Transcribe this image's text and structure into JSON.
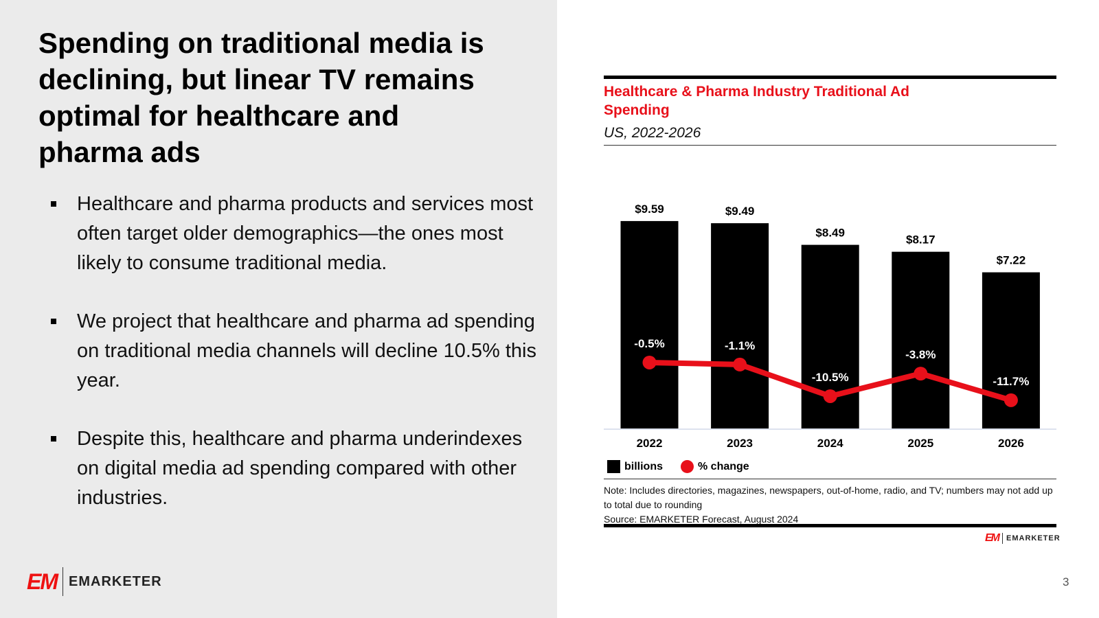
{
  "slide": {
    "title": "Spending on traditional media is declining, but linear TV remains optimal for healthcare and pharma ads",
    "bullets": [
      "Healthcare and pharma products and services most often target older demographics—the ones most likely to consume traditional media.",
      "We project that healthcare and pharma ad spending on traditional media channels will decline 10.5% this year.",
      "Despite this, healthcare and pharma underindexes on digital media ad spending compared with other industries."
    ],
    "logo_text": "EMARKETER",
    "logo_mark": "EM",
    "page_number": "3"
  },
  "chart_data": {
    "type": "bar",
    "title": "Healthcare & Pharma Industry Traditional Ad Spending",
    "subtitle": "US, 2022-2026",
    "categories": [
      "2022",
      "2023",
      "2024",
      "2025",
      "2026"
    ],
    "series": [
      {
        "name": "billions",
        "type": "bar",
        "values": [
          9.59,
          9.49,
          8.49,
          8.17,
          7.22
        ],
        "labels": [
          "$9.59",
          "$9.49",
          "$8.49",
          "$8.17",
          "$7.22"
        ],
        "color": "#000000"
      },
      {
        "name": "% change",
        "type": "line",
        "values": [
          -0.5,
          -1.1,
          -10.5,
          -3.8,
          -11.7
        ],
        "labels": [
          "-0.5%",
          "-1.1%",
          "-10.5%",
          "-3.8%",
          "-11.7%"
        ],
        "color": "#e8101a"
      }
    ],
    "legend": "bottom-left",
    "grid": false,
    "note": "Note: Includes directories, magazines, newspapers, out-of-home, radio, and TV; numbers may not add up to total due to rounding",
    "source": "Source: EMARKETER Forecast, August 2024",
    "logo_text": "EMARKETER"
  }
}
